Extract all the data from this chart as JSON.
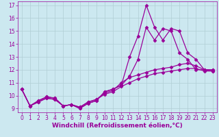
{
  "xlabel": "Windchill (Refroidissement éolien,°C)",
  "bg_color": "#cce8f0",
  "grid_color": "#b0cdd4",
  "line_color": "#990099",
  "xlim": [
    -0.5,
    23.5
  ],
  "ylim": [
    8.7,
    17.3
  ],
  "xticks": [
    0,
    1,
    2,
    3,
    4,
    5,
    6,
    7,
    8,
    9,
    10,
    11,
    12,
    13,
    14,
    15,
    16,
    17,
    18,
    19,
    20,
    21,
    22,
    23
  ],
  "yticks": [
    9,
    10,
    11,
    12,
    13,
    14,
    15,
    16,
    17
  ],
  "series": [
    {
      "x": [
        0,
        1,
        2,
        3,
        4,
        5,
        6,
        7,
        8,
        9,
        10,
        11,
        12,
        13,
        14,
        15,
        16,
        17,
        18,
        19,
        20,
        21,
        22,
        23
      ],
      "y": [
        10.5,
        9.2,
        9.6,
        9.9,
        9.8,
        9.2,
        9.3,
        9.0,
        9.4,
        9.6,
        10.3,
        10.5,
        10.8,
        13.0,
        14.6,
        17.0,
        15.3,
        14.3,
        15.2,
        15.0,
        13.3,
        12.8,
        12.0,
        12.0
      ]
    },
    {
      "x": [
        0,
        1,
        2,
        3,
        4,
        5,
        6,
        7,
        8,
        9,
        10,
        11,
        12,
        13,
        14,
        15,
        16,
        17,
        18,
        19,
        20,
        21,
        22,
        23
      ],
      "y": [
        10.5,
        9.2,
        9.6,
        9.9,
        9.8,
        9.2,
        9.3,
        9.0,
        9.4,
        9.6,
        10.3,
        10.5,
        10.8,
        11.5,
        12.8,
        15.3,
        14.3,
        15.2,
        15.0,
        13.3,
        12.8,
        12.0,
        12.0,
        12.0
      ]
    },
    {
      "x": [
        0,
        1,
        2,
        3,
        4,
        5,
        6,
        7,
        8,
        9,
        10,
        11,
        12,
        13,
        14,
        15,
        16,
        17,
        18,
        19,
        20,
        21,
        22,
        23
      ],
      "y": [
        10.5,
        9.2,
        9.5,
        9.8,
        9.7,
        9.2,
        9.3,
        9.1,
        9.5,
        9.7,
        10.2,
        10.4,
        11.0,
        11.4,
        11.6,
        11.8,
        12.0,
        12.1,
        12.2,
        12.4,
        12.5,
        12.3,
        12.0,
        11.9
      ]
    },
    {
      "x": [
        0,
        1,
        2,
        3,
        4,
        5,
        6,
        7,
        8,
        9,
        10,
        11,
        12,
        13,
        14,
        15,
        16,
        17,
        18,
        19,
        20,
        21,
        22,
        23
      ],
      "y": [
        10.5,
        9.2,
        9.5,
        9.8,
        9.7,
        9.2,
        9.3,
        9.1,
        9.5,
        9.7,
        10.1,
        10.3,
        10.7,
        11.0,
        11.3,
        11.5,
        11.7,
        11.8,
        11.9,
        12.0,
        12.1,
        12.1,
        11.9,
        11.9
      ]
    }
  ],
  "marker": "D",
  "marker_size": 2.5,
  "linewidth": 0.9,
  "xlabel_fontsize": 6.5,
  "tick_fontsize": 5.5
}
